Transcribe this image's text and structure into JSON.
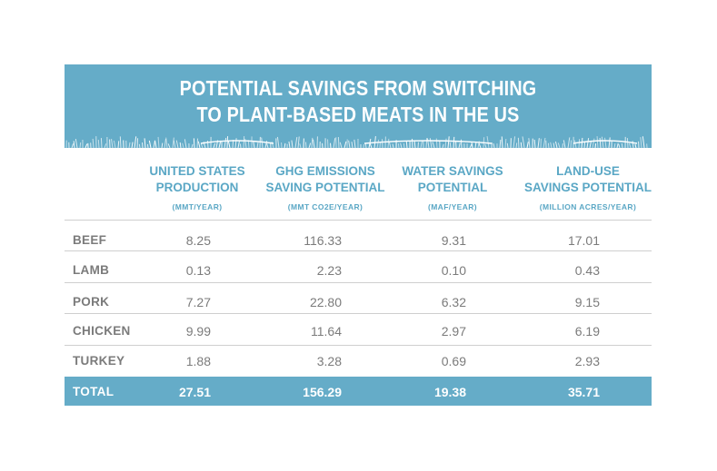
{
  "title": {
    "line1": "POTENTIAL SAVINGS FROM SWITCHING",
    "line2": "TO PLANT-BASED MEATS IN THE US"
  },
  "columns": [
    {
      "title1": "UNITED STATES",
      "title2": "PRODUCTION",
      "unit": "(MMT/YEAR)"
    },
    {
      "title1": "GHG EMISSIONS",
      "title2": "SAVING POTENTIAL",
      "unit": "(MMT CO2E/YEAR)"
    },
    {
      "title1": "WATER SAVINGS",
      "title2": "POTENTIAL",
      "unit": "(MAF/YEAR)"
    },
    {
      "title1": "LAND-USE",
      "title2": "SAVINGS POTENTIAL",
      "unit": "(MILLION ACRES/YEAR)"
    }
  ],
  "rows": [
    {
      "label": "BEEF",
      "values": [
        "8.25",
        "116.33",
        "9.31",
        "17.01"
      ]
    },
    {
      "label": "LAMB",
      "values": [
        "0.13",
        "2.23",
        "0.10",
        "0.43"
      ]
    },
    {
      "label": "PORK",
      "values": [
        "7.27",
        "22.80",
        "6.32",
        "9.15"
      ]
    },
    {
      "label": "CHICKEN",
      "values": [
        "9.99",
        "11.64",
        "2.97",
        "6.19"
      ]
    },
    {
      "label": "TURKEY",
      "values": [
        "1.88",
        "3.28",
        "0.69",
        "2.93"
      ]
    }
  ],
  "total": {
    "label": "TOTAL",
    "values": [
      "27.51",
      "156.29",
      "19.38",
      "35.71"
    ]
  },
  "colors": {
    "accent": "#65acc8",
    "header_text": "#5aa7c5",
    "body_text": "#7b7b7b",
    "rule": "#cfcfcf"
  }
}
